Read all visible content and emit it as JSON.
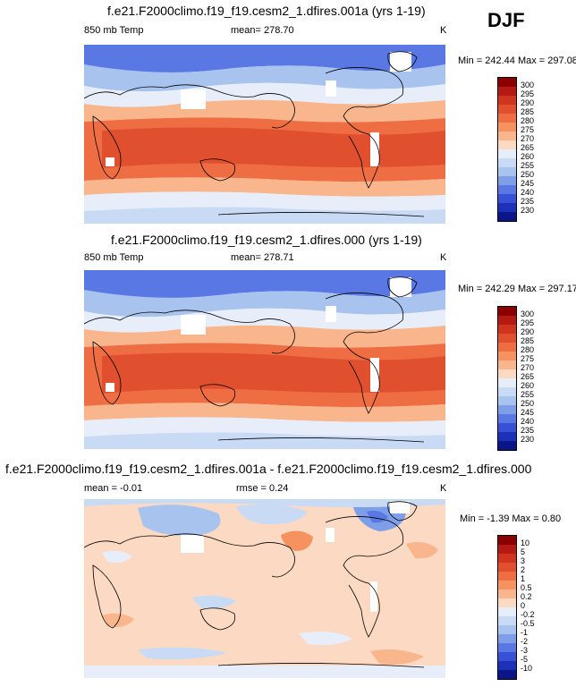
{
  "season": "DJF",
  "panels": [
    {
      "title": "f.e21.F2000climo.f19_f19.cesm2_1.dfires.001a (yrs 1-19)",
      "left_label": "850 mb Temp",
      "center_label": "mean= 278.70",
      "units": "K",
      "minmax": "Min = 242.44 Max = 297.08"
    },
    {
      "title": "f.e21.F2000climo.f19_f19.cesm2_1.dfires.000 (yrs 1-19)",
      "left_label": "850 mb Temp",
      "center_label": "mean= 278.71",
      "units": "K",
      "minmax": "Min = 242.29 Max = 297.17"
    },
    {
      "title": "f.e21.F2000climo.f19_f19.cesm2_1.dfires.001a - f.e21.F2000climo.f19_f19.cesm2_1.dfires.000",
      "left_label": "mean =  -0.01",
      "center_label": "rmse =   0.24",
      "units": "K",
      "minmax": "Min =  -1.39 Max =   0.80"
    }
  ],
  "temp_colorbar": {
    "labels": [
      "300",
      "295",
      "290",
      "285",
      "280",
      "275",
      "270",
      "265",
      "260",
      "255",
      "250",
      "245",
      "240",
      "235",
      "230"
    ],
    "colors": [
      "#8b0000",
      "#b51a12",
      "#d0341e",
      "#e0502e",
      "#ef6d42",
      "#f5925f",
      "#f9b58b",
      "#fcd9c2",
      "#e7eef9",
      "#c9dbf4",
      "#a8c4ee",
      "#7f9ee8",
      "#5a78e3",
      "#3650d6",
      "#1c30b8",
      "#0a1688"
    ]
  },
  "diff_colorbar": {
    "labels": [
      "10",
      "5",
      "3",
      "2",
      "1",
      "0.5",
      "0.2",
      "0",
      "-0.2",
      "-0.5",
      "-1",
      "-2",
      "-3",
      "-5",
      "-10"
    ],
    "colors": [
      "#8b0000",
      "#b51a12",
      "#d0341e",
      "#e0502e",
      "#ef6d42",
      "#f5925f",
      "#f9b58b",
      "#fcd9c2",
      "#e7eef9",
      "#c9dbf4",
      "#a8c4ee",
      "#7f9ee8",
      "#5a78e3",
      "#3650d6",
      "#1c30b8",
      "#0a1688"
    ]
  }
}
